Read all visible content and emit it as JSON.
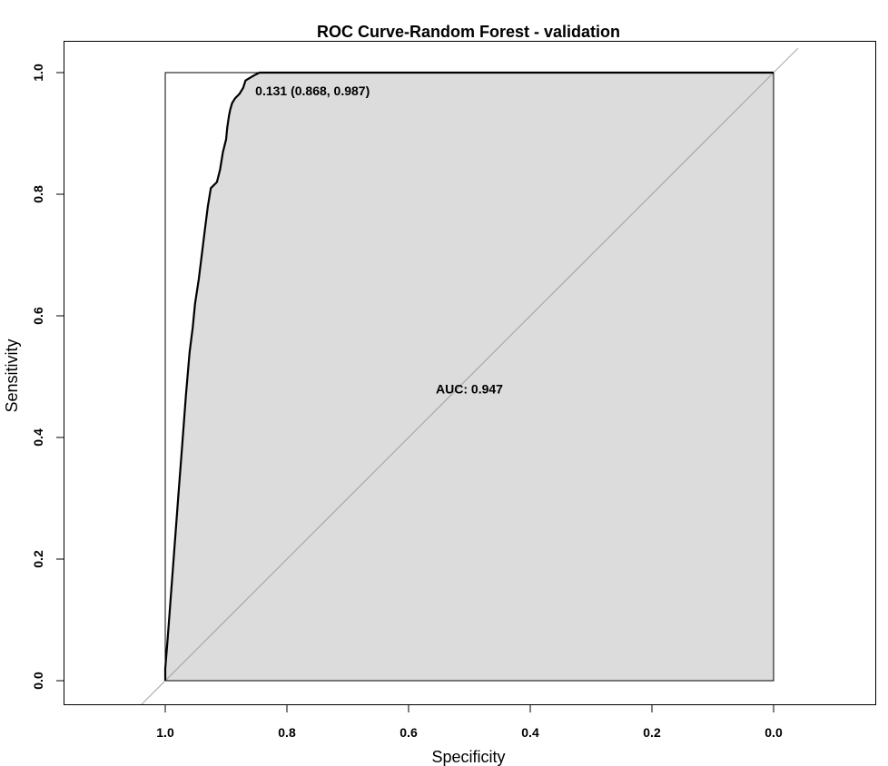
{
  "chart_data": {
    "type": "line",
    "title": "ROC Curve-Random Forest - validation",
    "xlabel": "Specificity",
    "ylabel": "Sensitivity",
    "x_reversed": true,
    "xlim": [
      1.0,
      0.0
    ],
    "ylim": [
      0.0,
      1.0
    ],
    "xticks": [
      1.0,
      0.8,
      0.6,
      0.4,
      0.2,
      0.0
    ],
    "xtick_labels": [
      "1.0",
      "0.8",
      "0.6",
      "0.4",
      "0.2",
      "0.0"
    ],
    "yticks": [
      0.0,
      0.2,
      0.4,
      0.6,
      0.8,
      1.0
    ],
    "ytick_labels": [
      "0.0",
      "0.2",
      "0.4",
      "0.6",
      "0.8",
      "1.0"
    ],
    "grid": false,
    "series": [
      {
        "points": [
          [
            1.0,
            0.0
          ],
          [
            1.0,
            0.02
          ],
          [
            0.996,
            0.07
          ],
          [
            0.99,
            0.15
          ],
          [
            0.984,
            0.23
          ],
          [
            0.978,
            0.31
          ],
          [
            0.972,
            0.39
          ],
          [
            0.966,
            0.47
          ],
          [
            0.96,
            0.54
          ],
          [
            0.955,
            0.58
          ],
          [
            0.951,
            0.62
          ],
          [
            0.945,
            0.66
          ],
          [
            0.94,
            0.7
          ],
          [
            0.935,
            0.74
          ],
          [
            0.93,
            0.78
          ],
          [
            0.925,
            0.81
          ],
          [
            0.915,
            0.82
          ],
          [
            0.91,
            0.84
          ],
          [
            0.905,
            0.87
          ],
          [
            0.9,
            0.89
          ],
          [
            0.898,
            0.91
          ],
          [
            0.895,
            0.93
          ],
          [
            0.893,
            0.94
          ],
          [
            0.89,
            0.95
          ],
          [
            0.885,
            0.958
          ],
          [
            0.878,
            0.965
          ],
          [
            0.872,
            0.975
          ],
          [
            0.868,
            0.987
          ],
          [
            0.86,
            0.992
          ],
          [
            0.853,
            0.996
          ],
          [
            0.845,
            1.0
          ],
          [
            0.0,
            1.0
          ]
        ]
      }
    ],
    "auc_area_fill": "#dcdcdc",
    "curve_color": "#000000",
    "diagonal_color": "#a0a0a0",
    "annotations": [
      {
        "text": "0.131 (0.868, 0.987)",
        "x": 0.852,
        "y": 0.97
      },
      {
        "text": "AUC: 0.947",
        "x": 0.5,
        "y": 0.48
      }
    ]
  }
}
